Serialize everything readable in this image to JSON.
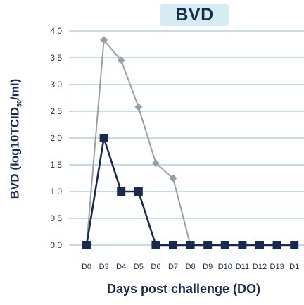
{
  "chart_data": {
    "type": "line",
    "title": "BVD",
    "xlabel": "Days post challenge (DO)",
    "ylabel": {
      "main": "BVD (log10TCID",
      "sub": "50",
      "end": "/ml)"
    },
    "categories": [
      "D0",
      "D3",
      "D4",
      "D5",
      "D6",
      "D7",
      "D8",
      "D9",
      "D10",
      "D11",
      "D12",
      "D13",
      "D1"
    ],
    "ylim": [
      0,
      4.0
    ],
    "yticks": [
      "0.0",
      "0.5",
      "1.0",
      "1.5",
      "2.0",
      "2.5",
      "3.0",
      "3.5",
      "4.0"
    ],
    "grid": true,
    "series": [
      {
        "marker": "diamond",
        "color": "#9a9ea6",
        "values": [
          0,
          3.83,
          3.45,
          2.58,
          1.53,
          1.25,
          0,
          null,
          null,
          null,
          null,
          null,
          null
        ]
      },
      {
        "marker": "square",
        "color": "#1a2a4c",
        "values": [
          0,
          2.0,
          1.0,
          1.0,
          0,
          0,
          0,
          0,
          0,
          0,
          0,
          0,
          0
        ]
      }
    ]
  }
}
